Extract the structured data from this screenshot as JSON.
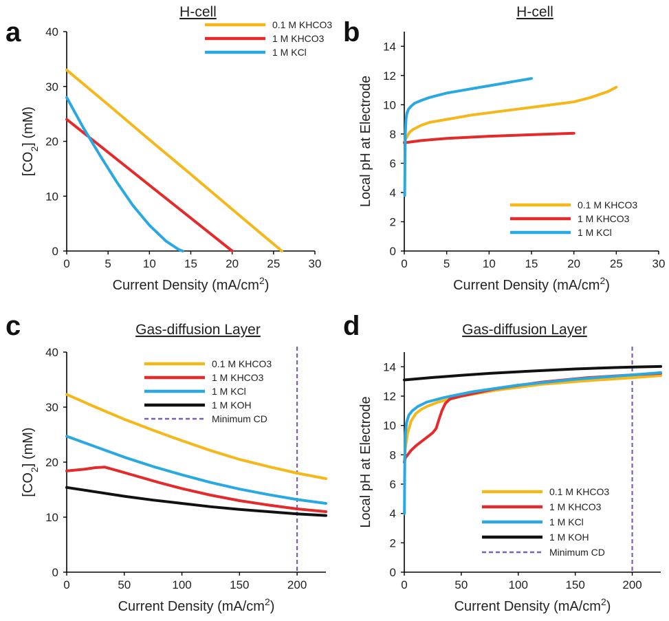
{
  "colors": {
    "kh01": "#f5b81b",
    "kh1": "#e32b2b",
    "kcl": "#2aa9e1",
    "koh": "#111111",
    "mincd": "#7a5fb3",
    "axis": "#000000"
  },
  "chart_data": [
    {
      "panel": "a",
      "type": "line",
      "title": "H-cell",
      "xlabel": "Current Density (mA/cm²)",
      "ylabel": "[CO₂] (mM)",
      "xlim": [
        0,
        30
      ],
      "ylim": [
        0,
        40
      ],
      "xticks": [
        0,
        5,
        10,
        15,
        20,
        25,
        30
      ],
      "yticks": [
        0,
        10,
        20,
        30,
        40
      ],
      "legend": {
        "position": "top-right"
      },
      "series": [
        {
          "name": "0.1 M KHCO3",
          "color": "#f5b81b",
          "x": [
            0,
            5,
            10,
            15,
            20,
            26
          ],
          "y": [
            33,
            26.7,
            20.3,
            14,
            7.6,
            0
          ]
        },
        {
          "name": "1 M KHCO3",
          "color": "#e32b2b",
          "x": [
            0,
            5,
            10,
            15,
            20
          ],
          "y": [
            24,
            18,
            12,
            6,
            0
          ]
        },
        {
          "name": "1 M KCl",
          "color": "#2aa9e1",
          "x": [
            0,
            2,
            4,
            6,
            8,
            10,
            12,
            13.5,
            14
          ],
          "y": [
            28,
            22.5,
            17.5,
            12.7,
            8.3,
            4.7,
            1.8,
            0.3,
            0
          ]
        }
      ]
    },
    {
      "panel": "b",
      "type": "line",
      "title": "H-cell",
      "xlabel": "Current Density (mA/cm²)",
      "ylabel": "Local pH at Electrode",
      "xlim": [
        0,
        30
      ],
      "ylim": [
        0,
        15
      ],
      "xticks": [
        0,
        5,
        10,
        15,
        20,
        25,
        30
      ],
      "yticks": [
        0,
        2,
        4,
        6,
        8,
        10,
        12,
        14
      ],
      "legend": {
        "position": "bottom-right"
      },
      "series": [
        {
          "name": "0.1 M KHCO3",
          "color": "#f5b81b",
          "x": [
            0,
            0.1,
            0.3,
            0.6,
            1,
            2,
            3,
            5,
            8,
            12,
            16,
            20,
            22,
            24,
            25
          ],
          "y": [
            7.5,
            7.6,
            7.8,
            8.1,
            8.3,
            8.6,
            8.8,
            9.0,
            9.3,
            9.6,
            9.9,
            10.2,
            10.5,
            10.9,
            11.2
          ]
        },
        {
          "name": "1 M KHCO3",
          "color": "#e32b2b",
          "x": [
            0,
            2,
            5,
            10,
            15,
            20
          ],
          "y": [
            7.4,
            7.55,
            7.7,
            7.85,
            7.95,
            8.05
          ]
        },
        {
          "name": "1 M KCl",
          "color": "#2aa9e1",
          "x": [
            0.05,
            0.08,
            0.12,
            0.2,
            0.3,
            0.5,
            0.8,
            1.2,
            2,
            3,
            5,
            8,
            11,
            13,
            15
          ],
          "y": [
            3.8,
            6,
            8,
            9.0,
            9.4,
            9.7,
            9.9,
            10.1,
            10.3,
            10.5,
            10.8,
            11.1,
            11.4,
            11.6,
            11.8
          ]
        }
      ]
    },
    {
      "panel": "c",
      "type": "line",
      "title": "Gas-diffusion Layer",
      "xlabel": "Current Density (mA/cm²)",
      "ylabel": "[CO₂] (mM)",
      "xlim": [
        0,
        225
      ],
      "ylim": [
        0,
        40
      ],
      "xticks": [
        0,
        50,
        100,
        150,
        200
      ],
      "yticks": [
        0,
        10,
        20,
        30,
        40
      ],
      "legend": {
        "position": "top-right"
      },
      "series": [
        {
          "name": "0.1 M KHCO3",
          "color": "#f5b81b",
          "x": [
            0,
            25,
            50,
            75,
            100,
            125,
            150,
            175,
            200,
            225
          ],
          "y": [
            32.3,
            30,
            27.8,
            25.8,
            23.9,
            22.1,
            20.5,
            19.2,
            18,
            17
          ]
        },
        {
          "name": "1 M KHCO3",
          "color": "#e32b2b",
          "x": [
            0,
            15,
            25,
            33,
            45,
            60,
            80,
            100,
            125,
            150,
            175,
            200,
            225
          ],
          "y": [
            18.4,
            18.7,
            19.0,
            19.1,
            18.4,
            17.5,
            16.3,
            15.2,
            14.0,
            13.0,
            12.2,
            11.5,
            11.0
          ]
        },
        {
          "name": "1 M KCl",
          "color": "#2aa9e1",
          "x": [
            0,
            25,
            50,
            75,
            100,
            125,
            150,
            175,
            200,
            225
          ],
          "y": [
            24.7,
            22.8,
            20.9,
            19.2,
            17.7,
            16.3,
            15.1,
            14.1,
            13.2,
            12.5
          ]
        },
        {
          "name": "1 M KOH",
          "color": "#111111",
          "x": [
            0,
            25,
            50,
            75,
            100,
            125,
            150,
            175,
            200,
            225
          ],
          "y": [
            15.4,
            14.6,
            13.8,
            13.1,
            12.5,
            11.9,
            11.4,
            11,
            10.6,
            10.3
          ]
        }
      ],
      "vline": {
        "name": "Minimum CD",
        "x": 200,
        "color": "#7a5fb3"
      }
    },
    {
      "panel": "d",
      "type": "line",
      "title": "Gas-diffusion Layer",
      "xlabel": "Current Density (mA/cm²)",
      "ylabel": "Local pH at Electrode",
      "xlim": [
        0,
        225
      ],
      "ylim": [
        0,
        15
      ],
      "xticks": [
        0,
        50,
        100,
        150,
        200
      ],
      "yticks": [
        0,
        2,
        4,
        6,
        8,
        10,
        12,
        14
      ],
      "legend": {
        "position": "bottom-right"
      },
      "series": [
        {
          "name": "0.1 M KHCO3",
          "color": "#f5b81b",
          "x": [
            0,
            1,
            3,
            6,
            10,
            15,
            20,
            30,
            50,
            80,
            120,
            160,
            200,
            225
          ],
          "y": [
            7.5,
            8.5,
            9.5,
            10.3,
            10.8,
            11.1,
            11.3,
            11.6,
            12.0,
            12.4,
            12.8,
            13.05,
            13.25,
            13.4
          ]
        },
        {
          "name": "1 M KHCO3",
          "color": "#e32b2b",
          "x": [
            0,
            1,
            3,
            6,
            10,
            15,
            20,
            25,
            28,
            30,
            33,
            36,
            40,
            50,
            80,
            120,
            160,
            200,
            225
          ],
          "y": [
            7.5,
            7.8,
            8.0,
            8.3,
            8.6,
            8.9,
            9.2,
            9.5,
            9.8,
            10.3,
            11.0,
            11.5,
            11.8,
            12.0,
            12.5,
            12.95,
            13.25,
            13.45,
            13.55
          ]
        },
        {
          "name": "1 M KCl",
          "color": "#2aa9e1",
          "x": [
            0.1,
            0.3,
            0.6,
            1,
            2,
            4,
            7,
            12,
            20,
            35,
            60,
            100,
            150,
            200,
            225
          ],
          "y": [
            4,
            6.5,
            8.5,
            9.5,
            10.2,
            10.7,
            11.0,
            11.3,
            11.6,
            11.9,
            12.3,
            12.75,
            13.15,
            13.45,
            13.6
          ]
        },
        {
          "name": "1 M KOH",
          "color": "#111111",
          "x": [
            0,
            25,
            50,
            75,
            100,
            125,
            150,
            175,
            200,
            225
          ],
          "y": [
            13.1,
            13.27,
            13.42,
            13.55,
            13.66,
            13.76,
            13.85,
            13.92,
            13.98,
            14.02
          ]
        }
      ],
      "vline": {
        "name": "Minimum CD",
        "x": 200,
        "color": "#7a5fb3"
      }
    }
  ]
}
